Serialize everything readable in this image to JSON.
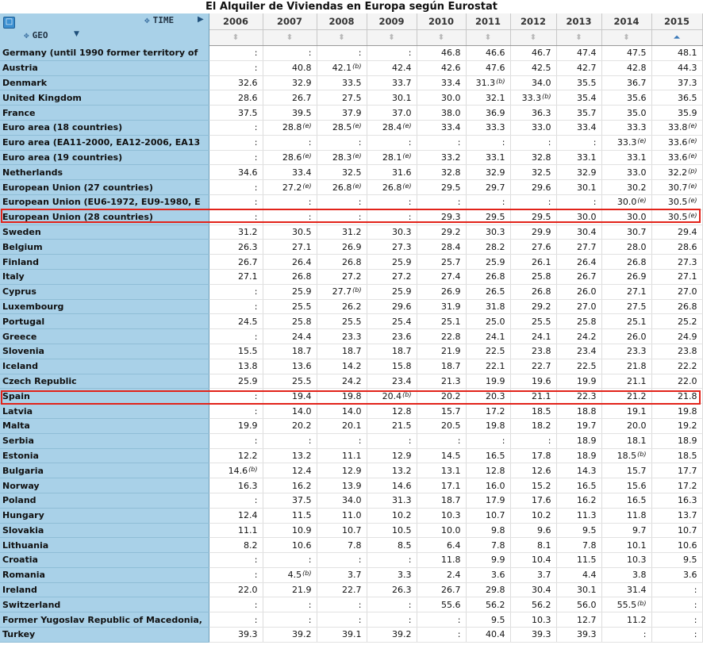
{
  "title": "El Alquiler de Viviendas en Europa según Eurostat",
  "header": {
    "time_label": "TIME",
    "geo_label": "GEO",
    "corner_icon": "table-icon",
    "years": [
      "2006",
      "2007",
      "2008",
      "2009",
      "2010",
      "2011",
      "2012",
      "2013",
      "2014",
      "2015"
    ],
    "sort_symbol": "⬍",
    "active_sort_symbol": "⏶"
  },
  "colors": {
    "header_bg": "#a9d1e8",
    "highlight": "#e2231a"
  },
  "highlighted_rows": [
    "European Union (28 countries)",
    "Spain"
  ],
  "rows": [
    {
      "geo": "Germany (until 1990 former territory of",
      "values": [
        ":",
        ":",
        ":",
        ":",
        "46.8",
        "46.6",
        "46.7",
        "47.4",
        "47.5",
        "48.1"
      ],
      "flags": [
        "",
        "",
        "",
        "",
        "",
        "",
        "",
        "",
        "",
        ""
      ]
    },
    {
      "geo": "Austria",
      "values": [
        ":",
        "40.8",
        "42.1",
        "42.4",
        "42.6",
        "47.6",
        "42.5",
        "42.7",
        "42.8",
        "44.3"
      ],
      "flags": [
        "",
        "",
        "(b)",
        "",
        "",
        "",
        "",
        "",
        "",
        ""
      ]
    },
    {
      "geo": "Denmark",
      "values": [
        "32.6",
        "32.9",
        "33.5",
        "33.7",
        "33.4",
        "31.3",
        "34.0",
        "35.5",
        "36.7",
        "37.3"
      ],
      "flags": [
        "",
        "",
        "",
        "",
        "",
        "(b)",
        "",
        "",
        "",
        ""
      ]
    },
    {
      "geo": "United Kingdom",
      "values": [
        "28.6",
        "26.7",
        "27.5",
        "30.1",
        "30.0",
        "32.1",
        "33.3",
        "35.4",
        "35.6",
        "36.5"
      ],
      "flags": [
        "",
        "",
        "",
        "",
        "",
        "",
        "(b)",
        "",
        "",
        ""
      ]
    },
    {
      "geo": "France",
      "values": [
        "37.5",
        "39.5",
        "37.9",
        "37.0",
        "38.0",
        "36.9",
        "36.3",
        "35.7",
        "35.0",
        "35.9"
      ],
      "flags": [
        "",
        "",
        "",
        "",
        "",
        "",
        "",
        "",
        "",
        ""
      ]
    },
    {
      "geo": "Euro area (18 countries)",
      "values": [
        ":",
        "28.8",
        "28.5",
        "28.4",
        "33.4",
        "33.3",
        "33.0",
        "33.4",
        "33.3",
        "33.8"
      ],
      "flags": [
        "",
        "(e)",
        "(e)",
        "(e)",
        "",
        "",
        "",
        "",
        "",
        "(e)"
      ]
    },
    {
      "geo": "Euro area (EA11-2000, EA12-2006, EA13",
      "values": [
        ":",
        ":",
        ":",
        ":",
        ":",
        ":",
        ":",
        ":",
        "33.3",
        "33.6"
      ],
      "flags": [
        "",
        "",
        "",
        "",
        "",
        "",
        "",
        "",
        "(e)",
        "(e)"
      ]
    },
    {
      "geo": "Euro area (19 countries)",
      "values": [
        ":",
        "28.6",
        "28.3",
        "28.1",
        "33.2",
        "33.1",
        "32.8",
        "33.1",
        "33.1",
        "33.6"
      ],
      "flags": [
        "",
        "(e)",
        "(e)",
        "(e)",
        "",
        "",
        "",
        "",
        "",
        "(e)"
      ]
    },
    {
      "geo": "Netherlands",
      "values": [
        "34.6",
        "33.4",
        "32.5",
        "31.6",
        "32.8",
        "32.9",
        "32.5",
        "32.9",
        "33.0",
        "32.2"
      ],
      "flags": [
        "",
        "",
        "",
        "",
        "",
        "",
        "",
        "",
        "",
        "(p)"
      ]
    },
    {
      "geo": "European Union (27 countries)",
      "values": [
        ":",
        "27.2",
        "26.8",
        "26.8",
        "29.5",
        "29.7",
        "29.6",
        "30.1",
        "30.2",
        "30.7"
      ],
      "flags": [
        "",
        "(e)",
        "(e)",
        "(e)",
        "",
        "",
        "",
        "",
        "",
        "(e)"
      ]
    },
    {
      "geo": "European Union (EU6-1972, EU9-1980, E",
      "values": [
        ":",
        ":",
        ":",
        ":",
        ":",
        ":",
        ":",
        ":",
        "30.0",
        "30.5"
      ],
      "flags": [
        "",
        "",
        "",
        "",
        "",
        "",
        "",
        "",
        "(e)",
        "(e)"
      ]
    },
    {
      "geo": "European Union (28 countries)",
      "values": [
        ":",
        ":",
        ":",
        ":",
        "29.3",
        "29.5",
        "29.5",
        "30.0",
        "30.0",
        "30.5"
      ],
      "flags": [
        "",
        "",
        "",
        "",
        "",
        "",
        "",
        "",
        "",
        "(e)"
      ]
    },
    {
      "geo": "Sweden",
      "values": [
        "31.2",
        "30.5",
        "31.2",
        "30.3",
        "29.2",
        "30.3",
        "29.9",
        "30.4",
        "30.7",
        "29.4"
      ],
      "flags": [
        "",
        "",
        "",
        "",
        "",
        "",
        "",
        "",
        "",
        ""
      ]
    },
    {
      "geo": "Belgium",
      "values": [
        "26.3",
        "27.1",
        "26.9",
        "27.3",
        "28.4",
        "28.2",
        "27.6",
        "27.7",
        "28.0",
        "28.6"
      ],
      "flags": [
        "",
        "",
        "",
        "",
        "",
        "",
        "",
        "",
        "",
        ""
      ]
    },
    {
      "geo": "Finland",
      "values": [
        "26.7",
        "26.4",
        "26.8",
        "25.9",
        "25.7",
        "25.9",
        "26.1",
        "26.4",
        "26.8",
        "27.3"
      ],
      "flags": [
        "",
        "",
        "",
        "",
        "",
        "",
        "",
        "",
        "",
        ""
      ]
    },
    {
      "geo": "Italy",
      "values": [
        "27.1",
        "26.8",
        "27.2",
        "27.2",
        "27.4",
        "26.8",
        "25.8",
        "26.7",
        "26.9",
        "27.1"
      ],
      "flags": [
        "",
        "",
        "",
        "",
        "",
        "",
        "",
        "",
        "",
        ""
      ]
    },
    {
      "geo": "Cyprus",
      "values": [
        ":",
        "25.9",
        "27.7",
        "25.9",
        "26.9",
        "26.5",
        "26.8",
        "26.0",
        "27.1",
        "27.0"
      ],
      "flags": [
        "",
        "",
        "(b)",
        "",
        "",
        "",
        "",
        "",
        "",
        ""
      ]
    },
    {
      "geo": "Luxembourg",
      "values": [
        ":",
        "25.5",
        "26.2",
        "29.6",
        "31.9",
        "31.8",
        "29.2",
        "27.0",
        "27.5",
        "26.8"
      ],
      "flags": [
        "",
        "",
        "",
        "",
        "",
        "",
        "",
        "",
        "",
        ""
      ]
    },
    {
      "geo": "Portugal",
      "values": [
        "24.5",
        "25.8",
        "25.5",
        "25.4",
        "25.1",
        "25.0",
        "25.5",
        "25.8",
        "25.1",
        "25.2"
      ],
      "flags": [
        "",
        "",
        "",
        "",
        "",
        "",
        "",
        "",
        "",
        ""
      ]
    },
    {
      "geo": "Greece",
      "values": [
        ":",
        "24.4",
        "23.3",
        "23.6",
        "22.8",
        "24.1",
        "24.1",
        "24.2",
        "26.0",
        "24.9"
      ],
      "flags": [
        "",
        "",
        "",
        "",
        "",
        "",
        "",
        "",
        "",
        ""
      ]
    },
    {
      "geo": "Slovenia",
      "values": [
        "15.5",
        "18.7",
        "18.7",
        "18.7",
        "21.9",
        "22.5",
        "23.8",
        "23.4",
        "23.3",
        "23.8"
      ],
      "flags": [
        "",
        "",
        "",
        "",
        "",
        "",
        "",
        "",
        "",
        ""
      ]
    },
    {
      "geo": "Iceland",
      "values": [
        "13.8",
        "13.6",
        "14.2",
        "15.8",
        "18.7",
        "22.1",
        "22.7",
        "22.5",
        "21.8",
        "22.2"
      ],
      "flags": [
        "",
        "",
        "",
        "",
        "",
        "",
        "",
        "",
        "",
        ""
      ]
    },
    {
      "geo": "Czech Republic",
      "values": [
        "25.9",
        "25.5",
        "24.2",
        "23.4",
        "21.3",
        "19.9",
        "19.6",
        "19.9",
        "21.1",
        "22.0"
      ],
      "flags": [
        "",
        "",
        "",
        "",
        "",
        "",
        "",
        "",
        "",
        ""
      ]
    },
    {
      "geo": "Spain",
      "values": [
        ":",
        "19.4",
        "19.8",
        "20.4",
        "20.2",
        "20.3",
        "21.1",
        "22.3",
        "21.2",
        "21.8"
      ],
      "flags": [
        "",
        "",
        "",
        "(b)",
        "",
        "",
        "",
        "",
        "",
        ""
      ]
    },
    {
      "geo": "Latvia",
      "values": [
        ":",
        "14.0",
        "14.0",
        "12.8",
        "15.7",
        "17.2",
        "18.5",
        "18.8",
        "19.1",
        "19.8"
      ],
      "flags": [
        "",
        "",
        "",
        "",
        "",
        "",
        "",
        "",
        "",
        ""
      ]
    },
    {
      "geo": "Malta",
      "values": [
        "19.9",
        "20.2",
        "20.1",
        "21.5",
        "20.5",
        "19.8",
        "18.2",
        "19.7",
        "20.0",
        "19.2"
      ],
      "flags": [
        "",
        "",
        "",
        "",
        "",
        "",
        "",
        "",
        "",
        ""
      ]
    },
    {
      "geo": "Serbia",
      "values": [
        ":",
        ":",
        ":",
        ":",
        ":",
        ":",
        ":",
        "18.9",
        "18.1",
        "18.9"
      ],
      "flags": [
        "",
        "",
        "",
        "",
        "",
        "",
        "",
        "",
        "",
        ""
      ]
    },
    {
      "geo": "Estonia",
      "values": [
        "12.2",
        "13.2",
        "11.1",
        "12.9",
        "14.5",
        "16.5",
        "17.8",
        "18.9",
        "18.5",
        "18.5"
      ],
      "flags": [
        "",
        "",
        "",
        "",
        "",
        "",
        "",
        "",
        "(b)",
        ""
      ]
    },
    {
      "geo": "Bulgaria",
      "values": [
        "14.6",
        "12.4",
        "12.9",
        "13.2",
        "13.1",
        "12.8",
        "12.6",
        "14.3",
        "15.7",
        "17.7"
      ],
      "flags": [
        "(b)",
        "",
        "",
        "",
        "",
        "",
        "",
        "",
        "",
        ""
      ]
    },
    {
      "geo": "Norway",
      "values": [
        "16.3",
        "16.2",
        "13.9",
        "14.6",
        "17.1",
        "16.0",
        "15.2",
        "16.5",
        "15.6",
        "17.2"
      ],
      "flags": [
        "",
        "",
        "",
        "",
        "",
        "",
        "",
        "",
        "",
        ""
      ]
    },
    {
      "geo": "Poland",
      "values": [
        ":",
        "37.5",
        "34.0",
        "31.3",
        "18.7",
        "17.9",
        "17.6",
        "16.2",
        "16.5",
        "16.3"
      ],
      "flags": [
        "",
        "",
        "",
        "",
        "",
        "",
        "",
        "",
        "",
        ""
      ]
    },
    {
      "geo": "Hungary",
      "values": [
        "12.4",
        "11.5",
        "11.0",
        "10.2",
        "10.3",
        "10.7",
        "10.2",
        "11.3",
        "11.8",
        "13.7"
      ],
      "flags": [
        "",
        "",
        "",
        "",
        "",
        "",
        "",
        "",
        "",
        ""
      ]
    },
    {
      "geo": "Slovakia",
      "values": [
        "11.1",
        "10.9",
        "10.7",
        "10.5",
        "10.0",
        "9.8",
        "9.6",
        "9.5",
        "9.7",
        "10.7"
      ],
      "flags": [
        "",
        "",
        "",
        "",
        "",
        "",
        "",
        "",
        "",
        ""
      ]
    },
    {
      "geo": "Lithuania",
      "values": [
        "8.2",
        "10.6",
        "7.8",
        "8.5",
        "6.4",
        "7.8",
        "8.1",
        "7.8",
        "10.1",
        "10.6"
      ],
      "flags": [
        "",
        "",
        "",
        "",
        "",
        "",
        "",
        "",
        "",
        ""
      ]
    },
    {
      "geo": "Croatia",
      "values": [
        ":",
        ":",
        ":",
        ":",
        "11.8",
        "9.9",
        "10.4",
        "11.5",
        "10.3",
        "9.5"
      ],
      "flags": [
        "",
        "",
        "",
        "",
        "",
        "",
        "",
        "",
        "",
        ""
      ]
    },
    {
      "geo": "Romania",
      "values": [
        ":",
        "4.5",
        "3.7",
        "3.3",
        "2.4",
        "3.6",
        "3.7",
        "4.4",
        "3.8",
        "3.6"
      ],
      "flags": [
        "",
        "(b)",
        "",
        "",
        "",
        "",
        "",
        "",
        "",
        ""
      ]
    },
    {
      "geo": "Ireland",
      "values": [
        "22.0",
        "21.9",
        "22.7",
        "26.3",
        "26.7",
        "29.8",
        "30.4",
        "30.1",
        "31.4",
        ":"
      ],
      "flags": [
        "",
        "",
        "",
        "",
        "",
        "",
        "",
        "",
        "",
        ""
      ]
    },
    {
      "geo": "Switzerland",
      "values": [
        ":",
        ":",
        ":",
        ":",
        "55.6",
        "56.2",
        "56.2",
        "56.0",
        "55.5",
        ":"
      ],
      "flags": [
        "",
        "",
        "",
        "",
        "",
        "",
        "",
        "",
        "(b)",
        ""
      ]
    },
    {
      "geo": "Former Yugoslav Republic of Macedonia,",
      "values": [
        ":",
        ":",
        ":",
        ":",
        ":",
        "9.5",
        "10.3",
        "12.7",
        "11.2",
        ":"
      ],
      "flags": [
        "",
        "",
        "",
        "",
        "",
        "",
        "",
        "",
        "",
        ""
      ]
    },
    {
      "geo": "Turkey",
      "values": [
        "39.3",
        "39.2",
        "39.1",
        "39.2",
        ":",
        "40.4",
        "39.3",
        "39.3",
        ":",
        ":"
      ],
      "flags": [
        "",
        "",
        "",
        "",
        "",
        "",
        "",
        "",
        "",
        ""
      ]
    }
  ]
}
